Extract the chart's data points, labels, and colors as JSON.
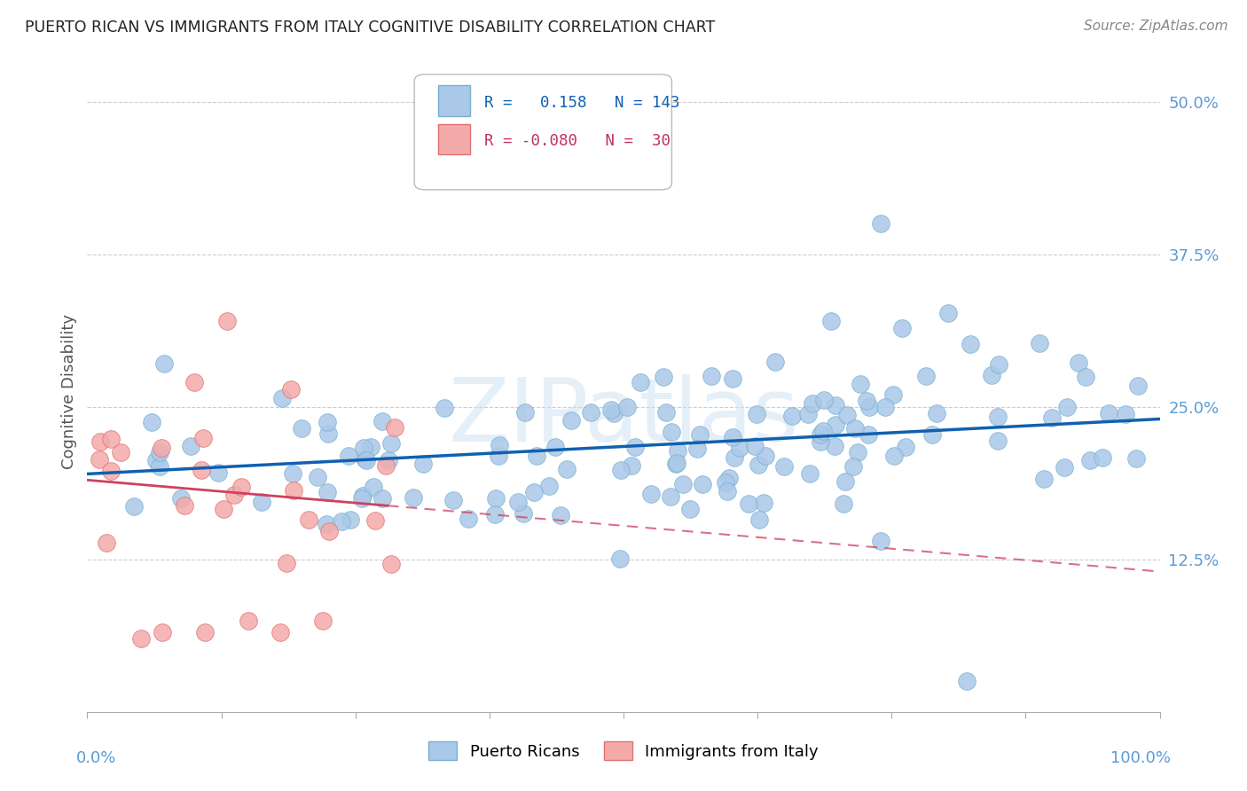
{
  "title": "PUERTO RICAN VS IMMIGRANTS FROM ITALY COGNITIVE DISABILITY CORRELATION CHART",
  "source": "Source: ZipAtlas.com",
  "ylabel": "Cognitive Disability",
  "watermark": "ZIPatlas",
  "blue_scatter_color": "#aac8e8",
  "blue_edge_color": "#7aafd0",
  "pink_scatter_color": "#f4aaaa",
  "pink_edge_color": "#e07070",
  "blue_line_color": "#1060b0",
  "pink_line_color": "#d04060",
  "background_color": "#ffffff",
  "grid_color": "#cccccc",
  "ytick_color": "#5b9bd5",
  "blue_R": 0.158,
  "pink_R": -0.08,
  "blue_N": 143,
  "pink_N": 30,
  "blue_intercept": 0.195,
  "blue_slope": 0.045,
  "pink_intercept": 0.19,
  "pink_slope": -0.075,
  "legend_text_color": "#1060b0",
  "legend_pink_text": "#c03060"
}
